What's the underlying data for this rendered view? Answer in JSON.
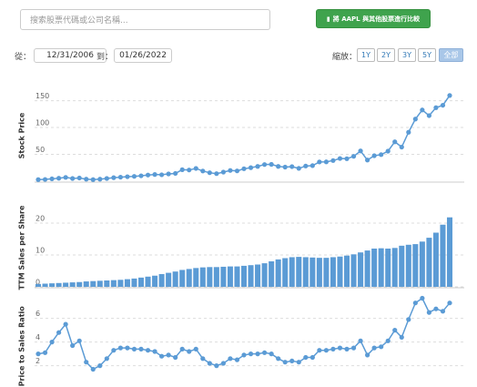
{
  "search": {
    "placeholder": "搜索股票代碼或公司名稱..."
  },
  "compare_button": "將 AAPL 與其他股票進行比較",
  "date_range": {
    "from_label": "從：",
    "from": "12/31/2006",
    "to_label": "到：",
    "to": "01/26/2022"
  },
  "zoom": {
    "label": "縮放：",
    "options": [
      "1Y",
      "2Y",
      "3Y",
      "5Y",
      "全部"
    ],
    "active": 4
  },
  "chart_data": [
    {
      "type": "line",
      "ylabel": "Stock Price",
      "color": "#5b9bd5",
      "ylim": [
        0,
        190
      ],
      "yticks": [
        50,
        100,
        150
      ],
      "grid": true,
      "values": [
        3.0,
        3.3,
        4.4,
        5.5,
        7.1,
        5.1,
        6.0,
        3.8,
        3.0,
        3.8,
        5.1,
        6.6,
        7.5,
        8.4,
        9.0,
        10.1,
        11.5,
        12.5,
        12.0,
        13.6,
        14.5,
        21.4,
        20.9,
        23.8,
        19.0,
        15.8,
        14.1,
        17.0,
        20.0,
        19.2,
        23.2,
        25.2,
        27.6,
        31.1,
        31.4,
        27.6,
        26.3,
        27.2,
        23.9,
        28.3,
        29.0,
        35.9,
        36.0,
        38.5,
        42.3,
        41.9,
        46.3,
        56.4,
        39.4,
        47.5,
        49.5,
        56.0,
        73.4,
        63.6,
        91.2,
        115.8,
        132.7,
        122.2,
        137.0,
        141.5,
        159.7
      ]
    },
    {
      "type": "bar",
      "ylabel": "TTM Sales per Share",
      "color": "#5b9bd5",
      "ylim": [
        0,
        28
      ],
      "yticks": [
        0,
        10,
        20
      ],
      "grid": true,
      "values": [
        0.9,
        1.0,
        1.1,
        1.2,
        1.3,
        1.4,
        1.5,
        1.7,
        1.8,
        1.9,
        2.0,
        2.1,
        2.2,
        2.4,
        2.6,
        2.9,
        3.2,
        3.5,
        4.0,
        4.4,
        4.8,
        5.3,
        5.6,
        5.9,
        6.1,
        6.2,
        6.2,
        6.3,
        6.4,
        6.4,
        6.6,
        6.8,
        7.0,
        7.4,
        8.0,
        8.6,
        9.0,
        9.3,
        9.4,
        9.3,
        9.2,
        9.1,
        9.1,
        9.3,
        9.5,
        9.8,
        10.2,
        10.8,
        11.4,
        12.0,
        12.1,
        12.0,
        12.2,
        12.9,
        13.2,
        13.4,
        14.2,
        15.4,
        17.0,
        19.5,
        21.8
      ]
    },
    {
      "type": "line",
      "ylabel": "Price to Sales Ratio",
      "color": "#5b9bd5",
      "ylim": [
        0.2,
        8
      ],
      "yticks": [
        2,
        4,
        6
      ],
      "grid": true,
      "values": [
        3.0,
        3.1,
        4.0,
        4.8,
        5.5,
        3.7,
        4.1,
        2.3,
        1.7,
        2.0,
        2.6,
        3.3,
        3.5,
        3.5,
        3.4,
        3.4,
        3.3,
        3.2,
        2.8,
        2.9,
        2.7,
        3.4,
        3.2,
        3.4,
        2.6,
        2.2,
        2.0,
        2.2,
        2.6,
        2.5,
        2.9,
        3.0,
        3.0,
        3.1,
        3.0,
        2.6,
        2.3,
        2.4,
        2.3,
        2.7,
        2.7,
        3.3,
        3.3,
        3.4,
        3.5,
        3.4,
        3.5,
        4.1,
        2.9,
        3.5,
        3.6,
        4.1,
        5.0,
        4.4,
        5.9,
        7.3,
        7.7,
        6.5,
        6.8,
        6.6,
        7.3
      ]
    }
  ]
}
